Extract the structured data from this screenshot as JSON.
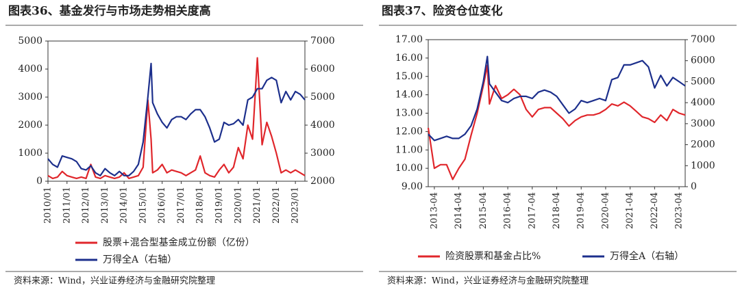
{
  "chart_data": [
    {
      "type": "line",
      "title": "图表36、基金发行与市场走势相关度高",
      "source": "资料来源：Wind，兴业证券经济与金融研究院整理",
      "x": [
        "2010/01",
        "2010/04",
        "2010/07",
        "2010/10",
        "2011/01",
        "2011/04",
        "2011/07",
        "2011/10",
        "2012/01",
        "2012/04",
        "2012/07",
        "2012/10",
        "2013/01",
        "2013/04",
        "2013/07",
        "2013/10",
        "2014/01",
        "2014/04",
        "2014/07",
        "2014/10",
        "2015/01",
        "2015/04",
        "2015/06",
        "2015/07",
        "2015/10",
        "2016/01",
        "2016/04",
        "2016/07",
        "2016/10",
        "2017/01",
        "2017/04",
        "2017/07",
        "2017/10",
        "2018/01",
        "2018/04",
        "2018/07",
        "2018/10",
        "2019/01",
        "2019/04",
        "2019/07",
        "2019/10",
        "2020/01",
        "2020/04",
        "2020/07",
        "2020/10",
        "2021/01",
        "2021/04",
        "2021/07",
        "2021/10",
        "2022/01",
        "2022/04",
        "2022/07",
        "2022/10",
        "2023/01",
        "2023/04",
        "2023/07"
      ],
      "xlim": [
        "2010/01",
        "2023/07"
      ],
      "xticks": [
        "2010/01",
        "2011/01",
        "2012/01",
        "2013/01",
        "2014/01",
        "2015/01",
        "2016/01",
        "2017/01",
        "2018/01",
        "2019/01",
        "2020/01",
        "2021/01",
        "2022/01",
        "2023/01"
      ],
      "ylim": [
        0,
        5000
      ],
      "yticks": [
        0,
        1000,
        2000,
        3000,
        4000,
        5000
      ],
      "y2lim": [
        2000,
        7000
      ],
      "y2ticks": [
        2000,
        3000,
        4000,
        5000,
        6000,
        7000
      ],
      "series": [
        {
          "name": "股票+混合型基金成立份额（亿份）",
          "color": "#e0262b",
          "values": [
            200,
            100,
            150,
            350,
            200,
            150,
            100,
            150,
            100,
            600,
            150,
            100,
            200,
            150,
            100,
            150,
            300,
            100,
            150,
            200,
            500,
            2900,
            1500,
            300,
            400,
            600,
            300,
            400,
            350,
            300,
            200,
            300,
            400,
            900,
            300,
            200,
            150,
            400,
            600,
            300,
            500,
            1200,
            800,
            2000,
            1500,
            4400,
            1300,
            2100,
            1600,
            1000,
            300,
            400,
            300,
            400,
            300,
            200
          ]
        },
        {
          "name": "万得全A（右轴）",
          "color": "#1c2f8c",
          "axis": "y2",
          "values": [
            2800,
            2600,
            2500,
            2900,
            2850,
            2800,
            2700,
            2450,
            2400,
            2550,
            2300,
            2200,
            2450,
            2300,
            2200,
            2350,
            2200,
            2200,
            2350,
            2600,
            3400,
            5000,
            6200,
            4800,
            4400,
            4100,
            3900,
            4200,
            4300,
            4300,
            4200,
            4400,
            4550,
            4550,
            4300,
            3900,
            3400,
            3500,
            4100,
            4000,
            4050,
            4200,
            4000,
            4900,
            5000,
            5300,
            5300,
            5600,
            5700,
            5600,
            4800,
            5200,
            4900,
            5200,
            5100,
            4900
          ]
        }
      ]
    },
    {
      "type": "line",
      "title": "图表37、险资仓位变化",
      "source": "资料来源：Wind，兴业证券经济与金融研究院整理",
      "x": [
        "2013-01",
        "2013-04",
        "2013-07",
        "2013-10",
        "2014-01",
        "2014-04",
        "2014-07",
        "2014-10",
        "2015-01",
        "2015-04",
        "2015-06",
        "2015-07",
        "2015-10",
        "2016-01",
        "2016-04",
        "2016-07",
        "2016-10",
        "2017-01",
        "2017-04",
        "2017-07",
        "2017-10",
        "2018-01",
        "2018-04",
        "2018-07",
        "2018-10",
        "2019-01",
        "2019-04",
        "2019-07",
        "2019-10",
        "2020-01",
        "2020-04",
        "2020-07",
        "2020-10",
        "2021-01",
        "2021-04",
        "2021-07",
        "2021-10",
        "2022-01",
        "2022-04",
        "2022-07",
        "2022-10",
        "2023-01",
        "2023-04",
        "2023-07"
      ],
      "xlim": [
        "2013-01",
        "2023-07"
      ],
      "xticks": [
        "2013-04",
        "2014-04",
        "2015-04",
        "2016-04",
        "2017-04",
        "2018-04",
        "2019-04",
        "2020-04",
        "2021-04",
        "2022-04",
        "2023-04"
      ],
      "ylim": [
        9,
        17
      ],
      "yticks": [
        {
          "value": 9,
          "label": "9.00"
        },
        {
          "value": 10,
          "label": "10.00"
        },
        {
          "value": 11,
          "label": "11.00"
        },
        {
          "value": 12,
          "label": "12.00"
        },
        {
          "value": 13,
          "label": "13.00"
        },
        {
          "value": 14,
          "label": "14.00"
        },
        {
          "value": 15,
          "label": "15.00"
        },
        {
          "value": 16,
          "label": "16.00"
        },
        {
          "value": 17,
          "label": "17.00"
        }
      ],
      "y2lim": [
        0,
        7000
      ],
      "y2ticks": [
        0,
        1000,
        2000,
        3000,
        4000,
        5000,
        6000,
        7000
      ],
      "series": [
        {
          "name": "险资股票和基金占比%",
          "color": "#e0262b",
          "values": [
            12.2,
            10.0,
            10.2,
            10.2,
            9.4,
            10.0,
            10.5,
            11.8,
            13.0,
            14.5,
            15.6,
            13.5,
            14.5,
            13.8,
            14.0,
            14.3,
            14.0,
            13.2,
            12.8,
            13.2,
            13.3,
            13.3,
            13.0,
            12.7,
            12.3,
            12.6,
            12.8,
            12.9,
            12.9,
            13.0,
            13.2,
            13.5,
            13.4,
            13.6,
            13.4,
            13.1,
            12.8,
            12.7,
            12.5,
            12.9,
            12.6,
            13.2,
            13.0,
            12.9
          ]
        },
        {
          "name": "万得全A（右轴）",
          "color": "#1c2f8c",
          "axis": "y2",
          "values": [
            2500,
            2200,
            2300,
            2400,
            2300,
            2300,
            2500,
            2900,
            3700,
            5000,
            6200,
            4900,
            4500,
            4100,
            4000,
            4200,
            4300,
            4300,
            4200,
            4500,
            4600,
            4500,
            4300,
            3900,
            3500,
            3700,
            4100,
            4000,
            4100,
            4200,
            4100,
            5100,
            5200,
            5800,
            5800,
            5900,
            6000,
            5700,
            4700,
            5300,
            4800,
            5200,
            5000,
            4800
          ]
        }
      ]
    }
  ]
}
